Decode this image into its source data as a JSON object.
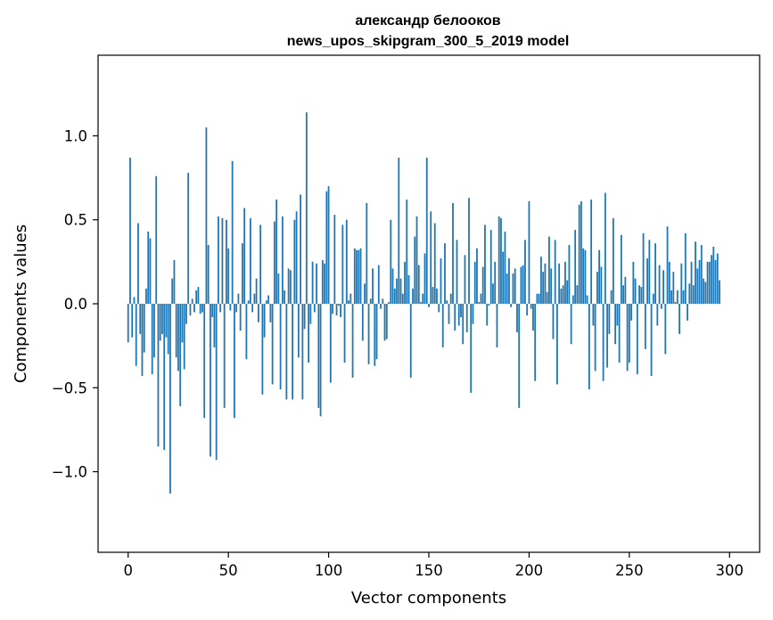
{
  "chart_data": {
    "type": "bar",
    "title": "александр белооков",
    "subtitle": "news_upos_skipgram_300_5_2019 model",
    "xlabel": "Vector components",
    "ylabel": "Components values",
    "xlim": [
      -15,
      315
    ],
    "ylim": [
      -1.48,
      1.48
    ],
    "x_ticks": [
      0,
      50,
      100,
      150,
      200,
      250,
      300
    ],
    "x_tick_labels": [
      "0",
      "50",
      "100",
      "150",
      "200",
      "250",
      "300"
    ],
    "y_ticks": [
      -1.0,
      -0.5,
      0.0,
      0.5,
      1.0
    ],
    "y_tick_labels": [
      "−1.0",
      "−0.5",
      "0.0",
      "0.5",
      "1.0"
    ],
    "bar_color": "#1f77b4",
    "grid": false,
    "values": [
      -0.23,
      0.87,
      -0.2,
      0.04,
      -0.37,
      0.48,
      -0.18,
      -0.43,
      -0.29,
      0.09,
      0.43,
      0.39,
      -0.42,
      -0.32,
      0.76,
      -0.85,
      -0.22,
      -0.18,
      -0.87,
      -0.2,
      -0.3,
      -1.13,
      0.15,
      0.26,
      -0.32,
      -0.4,
      -0.61,
      -0.23,
      -0.39,
      -0.12,
      0.78,
      -0.07,
      0.03,
      -0.05,
      0.08,
      0.1,
      -0.06,
      -0.05,
      -0.68,
      1.05,
      0.35,
      -0.91,
      -0.08,
      -0.26,
      -0.93,
      0.52,
      -0.05,
      0.51,
      -0.62,
      0.5,
      0.33,
      -0.04,
      0.85,
      -0.68,
      -0.05,
      0.06,
      -0.16,
      0.36,
      0.57,
      -0.33,
      0.02,
      0.51,
      -0.05,
      0.06,
      0.15,
      -0.11,
      0.47,
      -0.54,
      -0.2,
      0.02,
      0.05,
      -0.11,
      -0.48,
      0.49,
      0.62,
      0.18,
      -0.51,
      0.52,
      0.08,
      -0.57,
      0.21,
      0.2,
      -0.57,
      0.5,
      0.55,
      -0.32,
      0.65,
      -0.57,
      -0.15,
      1.14,
      -0.35,
      -0.12,
      0.25,
      -0.05,
      0.24,
      -0.62,
      -0.67,
      0.26,
      0.24,
      0.67,
      0.7,
      -0.47,
      -0.06,
      0.53,
      -0.07,
      -0.01,
      -0.08,
      0.47,
      -0.35,
      0.5,
      0.02,
      0.06,
      -0.44,
      0.33,
      0.32,
      0.32,
      0.33,
      -0.22,
      0.12,
      0.6,
      -0.36,
      0.03,
      0.21,
      -0.37,
      -0.33,
      0.23,
      -0.03,
      0.03,
      -0.22,
      -0.21,
      0.01,
      0.5,
      0.21,
      0.09,
      0.15,
      0.87,
      0.15,
      0.06,
      0.25,
      0.62,
      0.17,
      -0.44,
      0.09,
      0.4,
      0.52,
      0.23,
      0.01,
      0.06,
      0.3,
      0.87,
      -0.02,
      0.55,
      0.1,
      0.48,
      0.09,
      -0.05,
      0.27,
      -0.26,
      0.36,
      0.02,
      -0.12,
      0.06,
      0.6,
      -0.16,
      0.38,
      -0.13,
      -0.08,
      -0.24,
      0.29,
      -0.17,
      0.63,
      -0.53,
      -0.12,
      0.25,
      0.33,
      0.01,
      0.06,
      0.22,
      0.47,
      -0.13,
      -0.01,
      0.44,
      0.12,
      0.25,
      -0.26,
      0.52,
      0.51,
      0.31,
      0.43,
      0.18,
      0.27,
      -0.02,
      0.18,
      0.21,
      -0.17,
      -0.62,
      0.22,
      0.23,
      0.38,
      -0.07,
      0.61,
      -0.03,
      -0.16,
      -0.46,
      0.06,
      0.06,
      0.28,
      0.19,
      0.24,
      0.07,
      0.4,
      0.21,
      -0.21,
      0.38,
      -0.48,
      0.24,
      0.09,
      0.11,
      0.25,
      0.14,
      0.35,
      -0.24,
      0.05,
      0.44,
      0.11,
      0.59,
      0.61,
      0.33,
      0.32,
      0.05,
      -0.51,
      0.62,
      -0.13,
      -0.4,
      0.19,
      0.32,
      0.22,
      -0.46,
      0.66,
      -0.38,
      -0.18,
      0.08,
      0.51,
      -0.24,
      -0.13,
      -0.35,
      0.41,
      0.11,
      0.16,
      -0.4,
      -0.35,
      -0.1,
      0.25,
      0.15,
      -0.42,
      0.11,
      0.1,
      0.42,
      -0.27,
      0.27,
      0.38,
      -0.43,
      0.06,
      0.36,
      -0.13,
      0.23,
      -0.03,
      0.2,
      -0.3,
      0.46,
      0.25,
      0.08,
      0.19,
      0.01,
      0.08,
      -0.18,
      0.24,
      0.08,
      0.42,
      -0.1,
      0.12,
      0.25,
      0.11,
      0.37,
      0.21,
      0.26,
      0.35,
      0.15,
      0.13,
      0.25,
      0.25,
      0.29,
      0.34,
      0.26,
      0.3,
      0.14
    ]
  }
}
